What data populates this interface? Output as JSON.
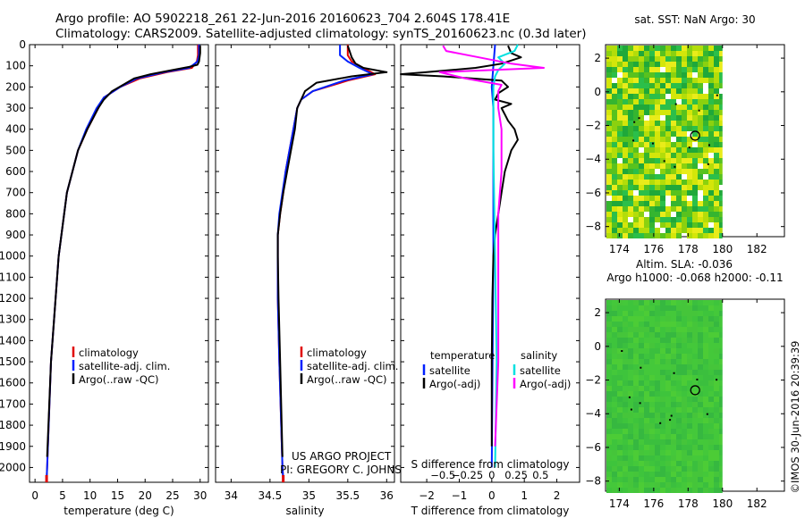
{
  "header": {
    "line1": "Argo profile: AO 5902218_261 22-Jun-2016 20160623_704 2.604S 178.41E",
    "line2": "Climatology: CARS2009. Satellite-adjusted climatology: synTS_20160623.nc (0.3d later)"
  },
  "colors": {
    "climatology": "#e00000",
    "satellite": "#0020ff",
    "argo": "#000000",
    "sat_salinity": "#00e0e0",
    "argo_salinity": "#ff00ff",
    "marker": "#000000"
  },
  "depth_axis": {
    "ticks": [
      0,
      100,
      200,
      300,
      400,
      500,
      600,
      700,
      800,
      900,
      1000,
      1100,
      1200,
      1300,
      1400,
      1500,
      1600,
      1700,
      1800,
      1900,
      2000
    ],
    "range": [
      0,
      2070
    ]
  },
  "chart_data": [
    {
      "type": "line",
      "id": "temperature",
      "xlabel": "temperature (deg C)",
      "xlim": [
        -1,
        31.5
      ],
      "xticks": [
        0,
        5,
        10,
        15,
        20,
        25,
        30
      ],
      "ylabel": "depth",
      "ylim": [
        0,
        2070
      ],
      "legend": [
        "climatology",
        "satellite-adj. clim.",
        "Argo(..raw -QC)"
      ],
      "series": [
        {
          "name": "climatology",
          "color": "#e00000",
          "depth": [
            0,
            50,
            80,
            110,
            130,
            160,
            200,
            250,
            300,
            400,
            500,
            700,
            1000,
            1500,
            2000,
            2060
          ],
          "values": [
            29.6,
            29.6,
            29.4,
            28.5,
            24,
            19,
            15.5,
            12.5,
            11.5,
            9.5,
            7.8,
            5.8,
            4.3,
            2.9,
            2.2,
            2.1
          ]
        },
        {
          "name": "satellite-adj. clim.",
          "color": "#0020ff",
          "depth": [
            0,
            50,
            80,
            110,
            130,
            160,
            200,
            250,
            300,
            400,
            500,
            700,
            1000,
            1500,
            2000,
            2060
          ],
          "values": [
            29.8,
            29.8,
            29.5,
            28,
            23.5,
            18.5,
            15.5,
            12.5,
            11.2,
            9.3,
            7.8,
            5.8,
            4.3,
            2.9,
            2.2,
            2.1
          ]
        },
        {
          "name": "Argo(..raw -QC)",
          "color": "#000000",
          "depth": [
            5,
            40,
            80,
            95,
            105,
            120,
            140,
            160,
            190,
            220,
            260,
            300,
            400,
            500,
            700,
            1000,
            1500,
            1950
          ],
          "values": [
            30.0,
            30.0,
            29.8,
            29.5,
            28,
            25,
            21,
            18,
            16,
            14,
            12.5,
            11.5,
            9.5,
            7.8,
            5.8,
            4.3,
            2.9,
            2.2
          ]
        }
      ]
    },
    {
      "type": "line",
      "id": "salinity",
      "xlabel": "salinity",
      "xlim": [
        33.8,
        36.1
      ],
      "xticks": [
        34,
        34.5,
        35,
        35.5,
        36
      ],
      "ylim": [
        0,
        2070
      ],
      "legend": [
        "climatology",
        "satellite-adj. clim.",
        "Argo(..raw -QC)"
      ],
      "annotation": [
        "US ARGO PROJECT",
        "PI: GREGORY C. JOHNSON"
      ],
      "series": [
        {
          "name": "climatology",
          "color": "#e00000",
          "depth": [
            0,
            50,
            80,
            110,
            140,
            170,
            220,
            260,
            300,
            400,
            500,
            600,
            700,
            800,
            900,
            1000,
            1200,
            1500,
            2000,
            2060
          ],
          "values": [
            35.5,
            35.5,
            35.55,
            35.7,
            35.85,
            35.5,
            35.05,
            34.9,
            34.85,
            34.8,
            34.75,
            34.7,
            34.67,
            34.63,
            34.6,
            34.6,
            34.6,
            34.62,
            34.66,
            34.67
          ]
        },
        {
          "name": "satellite-adj. clim.",
          "color": "#0020ff",
          "depth": [
            0,
            50,
            80,
            110,
            140,
            170,
            220,
            260,
            300,
            400,
            500,
            600,
            700,
            800,
            900,
            1000,
            1200,
            1500,
            2000,
            2060
          ],
          "values": [
            35.4,
            35.4,
            35.5,
            35.65,
            35.82,
            35.45,
            35.05,
            34.9,
            34.85,
            34.8,
            34.75,
            34.7,
            34.66,
            34.62,
            34.6,
            34.6,
            34.6,
            34.62,
            34.66,
            34.67
          ]
        },
        {
          "name": "Argo(..raw -QC)",
          "color": "#000000",
          "depth": [
            5,
            60,
            90,
            110,
            130,
            150,
            180,
            220,
            260,
            300,
            400,
            500,
            600,
            700,
            800,
            900,
            1000,
            1200,
            1500,
            1950
          ],
          "values": [
            35.5,
            35.55,
            35.6,
            35.7,
            36.0,
            35.55,
            35.1,
            34.95,
            34.9,
            34.85,
            34.82,
            34.77,
            34.72,
            34.67,
            34.63,
            34.6,
            34.6,
            34.61,
            34.63,
            34.66
          ]
        }
      ]
    },
    {
      "type": "line",
      "id": "difference",
      "xlabel": "T difference from climatology",
      "xlabel2": "S difference from climatology",
      "xlim": [
        -2.8,
        2.7
      ],
      "xticks": [
        -2,
        -1,
        0,
        1,
        2
      ],
      "xticks_salinity": [
        -0.5,
        -0.25,
        0,
        0.25,
        0.5
      ],
      "ylim": [
        0,
        2070
      ],
      "legend_temperature": {
        "heading": "temperature",
        "items": [
          "satellite",
          "Argo(-adj)"
        ]
      },
      "legend_salinity": {
        "heading": "salinity",
        "items": [
          "satellite",
          "Argo(-adj)"
        ]
      },
      "series": [
        {
          "name": "temperature satellite",
          "color": "#0020ff",
          "depth": [
            0,
            100,
            200,
            300,
            500,
            1000,
            2000
          ],
          "values": [
            0.1,
            0.05,
            0,
            0.05,
            0.05,
            0.05,
            0
          ]
        },
        {
          "name": "temperature Argo(-adj)",
          "color": "#000000",
          "depth": [
            5,
            40,
            60,
            90,
            110,
            130,
            140,
            150,
            170,
            200,
            230,
            260,
            280,
            300,
            330,
            360,
            400,
            450,
            500,
            600,
            700,
            800,
            900,
            1000,
            1200,
            1500,
            1900
          ],
          "values": [
            0.5,
            0.6,
            0.9,
            0.3,
            -0.5,
            -2.0,
            -2.8,
            -1.5,
            0.3,
            0.5,
            0.2,
            0.1,
            0.6,
            0.3,
            0.4,
            0.5,
            0.7,
            0.8,
            0.6,
            0.4,
            0.3,
            0.2,
            0.1,
            0.05,
            0.02,
            0,
            0
          ]
        },
        {
          "name": "salinity satellite",
          "color": "#00e0e0",
          "depth": [
            0,
            30,
            60,
            90,
            120,
            150,
            200,
            300,
            500,
            1000,
            1500,
            2000
          ],
          "values": [
            0.8,
            0.7,
            0.2,
            0.4,
            0.2,
            0.1,
            0.05,
            0.05,
            0.05,
            0.1,
            0.15,
            0.1
          ]
        },
        {
          "name": "salinity Argo(-adj)",
          "color": "#ff00ff",
          "depth": [
            5,
            30,
            60,
            90,
            110,
            130,
            160,
            190,
            220,
            250,
            300,
            400,
            500,
            600,
            800,
            1000,
            1500,
            1900
          ],
          "values": [
            -1.5,
            -1.4,
            -0.4,
            0.6,
            1.6,
            -1.6,
            -0.8,
            0.3,
            0.2,
            0.2,
            0.2,
            0.3,
            0.3,
            0.3,
            0.2,
            0.2,
            0.2,
            0.1
          ]
        }
      ]
    }
  ],
  "maps": [
    {
      "id": "sst",
      "title": "sat. SST: NaN Argo: 30",
      "xticks": [
        174,
        176,
        178,
        180,
        182
      ],
      "yticks": [
        2,
        0,
        -2,
        -4,
        -6,
        -8
      ],
      "xlim": [
        173.2,
        183.6
      ],
      "ylim": [
        -8.6,
        2.8
      ],
      "data_lon_max": 180,
      "marker": {
        "lon": 178.41,
        "lat": -2.604
      }
    },
    {
      "id": "sla",
      "title": "Altim. SLA: -0.036",
      "subtitle": "Argo h1000: -0.068 h2000: -0.11",
      "xticks": [
        174,
        176,
        178,
        180,
        182
      ],
      "yticks": [
        2,
        0,
        -2,
        -4,
        -6,
        -8
      ],
      "xlim": [
        173.2,
        183.6
      ],
      "ylim": [
        -8.6,
        2.8
      ],
      "data_lon_max": 180,
      "marker": {
        "lon": 178.41,
        "lat": -2.604
      }
    }
  ],
  "footer": {
    "timestamp": "©IMOS 30-Jun-2016 20:39:39"
  }
}
